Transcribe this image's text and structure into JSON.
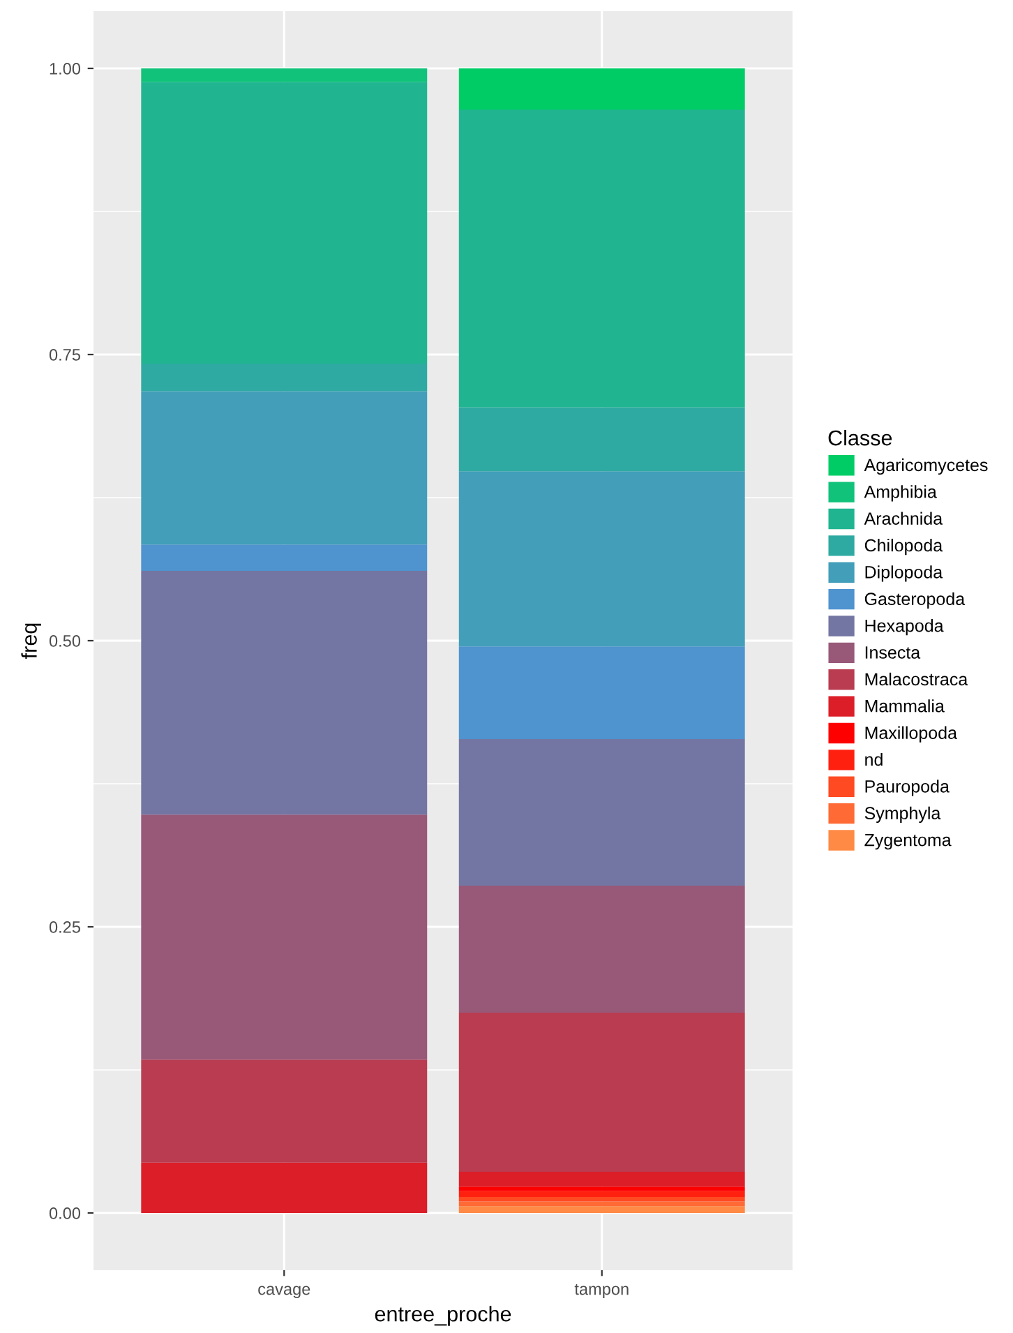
{
  "chart_data": {
    "type": "bar",
    "stacked": true,
    "xlabel": "entree_proche",
    "ylabel": "freq",
    "legend_title": "Classe",
    "legend": "right",
    "categories": [
      "cavage",
      "tampon"
    ],
    "series": [
      {
        "name": "Zygentoma",
        "color": "#ff8a45",
        "values": [
          0,
          0.006
        ]
      },
      {
        "name": "Symphyla",
        "color": "#ff6a35",
        "values": [
          0,
          0.004
        ]
      },
      {
        "name": "Pauropoda",
        "color": "#ff4a22",
        "values": [
          0,
          0.004
        ]
      },
      {
        "name": "nd",
        "color": "#ff2010",
        "values": [
          0,
          0.005
        ]
      },
      {
        "name": "Maxillopoda",
        "color": "#ff0000",
        "values": [
          0,
          0.004
        ]
      },
      {
        "name": "Mammalia",
        "color": "#dc1e28",
        "values": [
          0.044,
          0.013
        ]
      },
      {
        "name": "Malacostraca",
        "color": "#b93c50",
        "values": [
          0.09,
          0.139
        ]
      },
      {
        "name": "Insecta",
        "color": "#985979",
        "values": [
          0.214,
          0.111
        ]
      },
      {
        "name": "Hexapoda",
        "color": "#7376a2",
        "values": [
          0.213,
          0.128
        ]
      },
      {
        "name": "Gasteropoda",
        "color": "#4f93cf",
        "values": [
          0.023,
          0.081
        ]
      },
      {
        "name": "Diplopoda",
        "color": "#429eb9",
        "values": [
          0.134,
          0.153
        ]
      },
      {
        "name": "Chilopoda",
        "color": "#2eaaa2",
        "values": [
          0.024,
          0.056
        ]
      },
      {
        "name": "Arachnida",
        "color": "#20b590",
        "values": [
          0.246,
          0.26
        ]
      },
      {
        "name": "Amphibia",
        "color": "#11c27a",
        "values": [
          0.012,
          0
        ]
      },
      {
        "name": "Agaricomycetes",
        "color": "#00cc66",
        "values": [
          0,
          0.036
        ]
      }
    ],
    "ylim": [
      -0.05,
      1.05
    ],
    "yticks": [
      {
        "value": 0,
        "label": "0.00"
      },
      {
        "value": 0.25,
        "label": "0.25"
      },
      {
        "value": 0.5,
        "label": "0.50"
      },
      {
        "value": 0.75,
        "label": "0.75"
      },
      {
        "value": 1,
        "label": "1.00"
      }
    ],
    "grid": true
  }
}
